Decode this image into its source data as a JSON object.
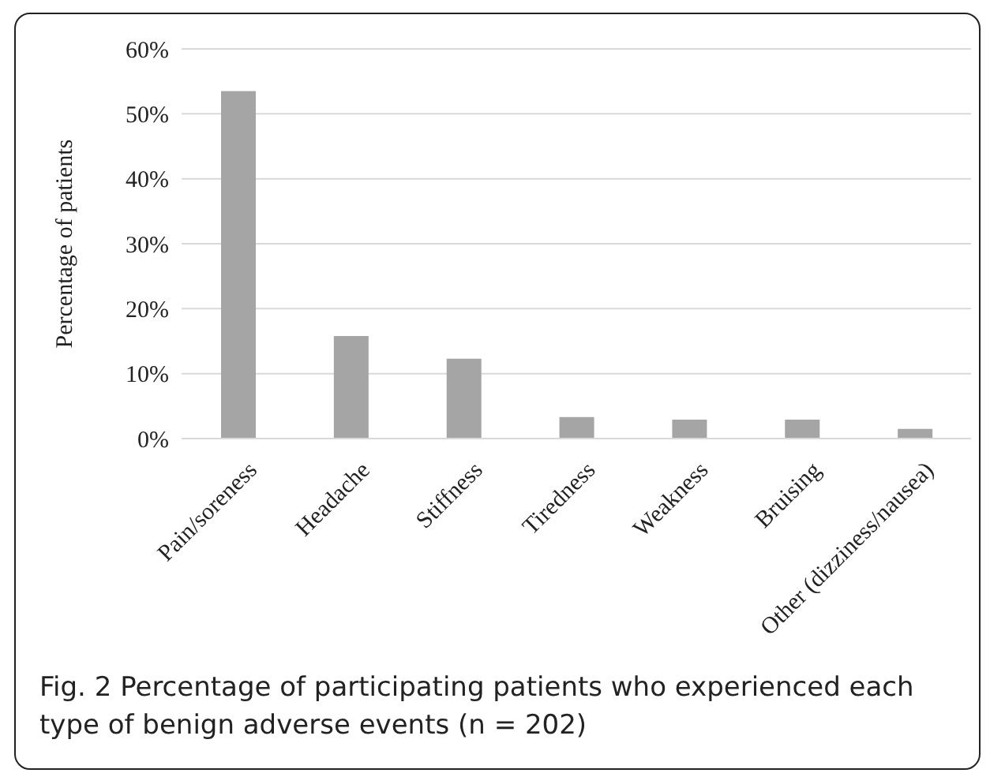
{
  "chart_data": {
    "type": "bar",
    "ylabel": "Percentage of patients",
    "categories": [
      "Pain/soreness",
      "Headache",
      "Stiffness",
      "Tiredness",
      "Weakness",
      "Bruising",
      "Other (dizziness/nausea)"
    ],
    "values": [
      53.5,
      15.8,
      12.3,
      3.3,
      2.9,
      2.9,
      1.5
    ],
    "color": "#a5a5a5",
    "ylim": [
      0,
      60
    ],
    "yticks": [
      {
        "value": 0,
        "label": "0%"
      },
      {
        "value": 10,
        "label": "10%"
      },
      {
        "value": 20,
        "label": "20%"
      },
      {
        "value": 30,
        "label": "30%"
      },
      {
        "value": 40,
        "label": "40%"
      },
      {
        "value": 50,
        "label": "50%"
      },
      {
        "value": 60,
        "label": "60%"
      }
    ],
    "grid": "y",
    "legend": false,
    "annotations": [
      "Fig. 2 Percentage of participating patients who experienced each type of benign adverse events (n = 202)"
    ]
  }
}
